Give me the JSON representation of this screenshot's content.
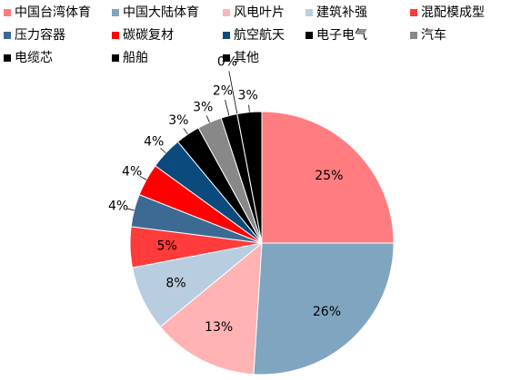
{
  "chart_data": {
    "type": "pie",
    "categories": [
      "中国台湾体育",
      "中国大陆体育",
      "风电叶片",
      "建筑补强",
      "混配模成型",
      "压力容器",
      "碳碳复材",
      "航空航天",
      "电子电气",
      "汽车",
      "电缆芯",
      "船舶",
      "其他"
    ],
    "values": [
      25,
      26,
      13,
      8,
      5,
      4,
      4,
      4,
      3,
      3,
      2,
      0,
      3
    ],
    "value_labels": [
      "25%",
      "26%",
      "13%",
      "8%",
      "5%",
      "4%",
      "4%",
      "4%",
      "3%",
      "3%",
      "2%",
      "0%",
      "3%"
    ],
    "colors": [
      "#ff7c80",
      "#7fa5c1",
      "#ffb3b3",
      "#b9cde0",
      "#ff3b3b",
      "#3c6a93",
      "#ff0000",
      "#0b4a7c",
      "#000000",
      "#888888",
      "#000000",
      "#000000",
      "#000000"
    ],
    "legend": "top"
  }
}
